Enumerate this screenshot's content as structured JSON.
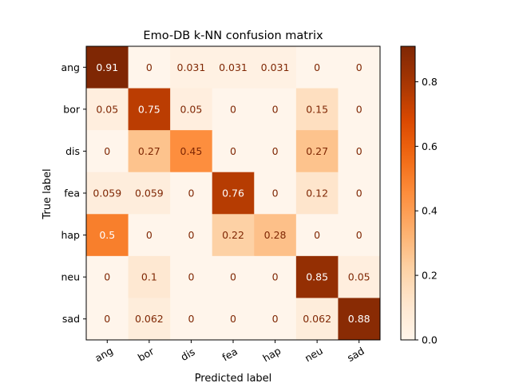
{
  "chart_data": {
    "type": "heatmap",
    "title": "Emo-DB k-NN confusion matrix",
    "xlabel": "Predicted label",
    "ylabel": "True label",
    "x_categories": [
      "ang",
      "bor",
      "dis",
      "fea",
      "hap",
      "neu",
      "sad"
    ],
    "y_categories": [
      "ang",
      "bor",
      "dis",
      "fea",
      "hap",
      "neu",
      "sad"
    ],
    "values": [
      [
        0.91,
        0,
        0.031,
        0.031,
        0.031,
        0,
        0
      ],
      [
        0.05,
        0.75,
        0.05,
        0,
        0,
        0.15,
        0
      ],
      [
        0,
        0.27,
        0.45,
        0,
        0,
        0.27,
        0
      ],
      [
        0.059,
        0.059,
        0,
        0.76,
        0,
        0.12,
        0
      ],
      [
        0.5,
        0,
        0,
        0.22,
        0.28,
        0,
        0
      ],
      [
        0,
        0.1,
        0,
        0,
        0,
        0.85,
        0.05
      ],
      [
        0,
        0.062,
        0,
        0,
        0,
        0.062,
        0.88
      ]
    ],
    "labels": [
      [
        "0.91",
        "0",
        "0.031",
        "0.031",
        "0.031",
        "0",
        "0"
      ],
      [
        "0.05",
        "0.75",
        "0.05",
        "0",
        "0",
        "0.15",
        "0"
      ],
      [
        "0",
        "0.27",
        "0.45",
        "0",
        "0",
        "0.27",
        "0"
      ],
      [
        "0.059",
        "0.059",
        "0",
        "0.76",
        "0",
        "0.12",
        "0"
      ],
      [
        "0.5",
        "0",
        "0",
        "0.22",
        "0.28",
        "0",
        "0"
      ],
      [
        "0",
        "0.1",
        "0",
        "0",
        "0",
        "0.85",
        "0.05"
      ],
      [
        "0",
        "0.062",
        "0",
        "0",
        "0",
        "0.062",
        "0.88"
      ]
    ],
    "colormap": "Oranges",
    "color_range": [
      0.0,
      0.91
    ],
    "colorbar": {
      "ticks": [
        0.0,
        0.2,
        0.4,
        0.6,
        0.8
      ],
      "tick_labels": [
        "0.0",
        "0.2",
        "0.4",
        "0.6",
        "0.8"
      ]
    },
    "x_tick_rotation_deg": 30,
    "grid": false
  }
}
